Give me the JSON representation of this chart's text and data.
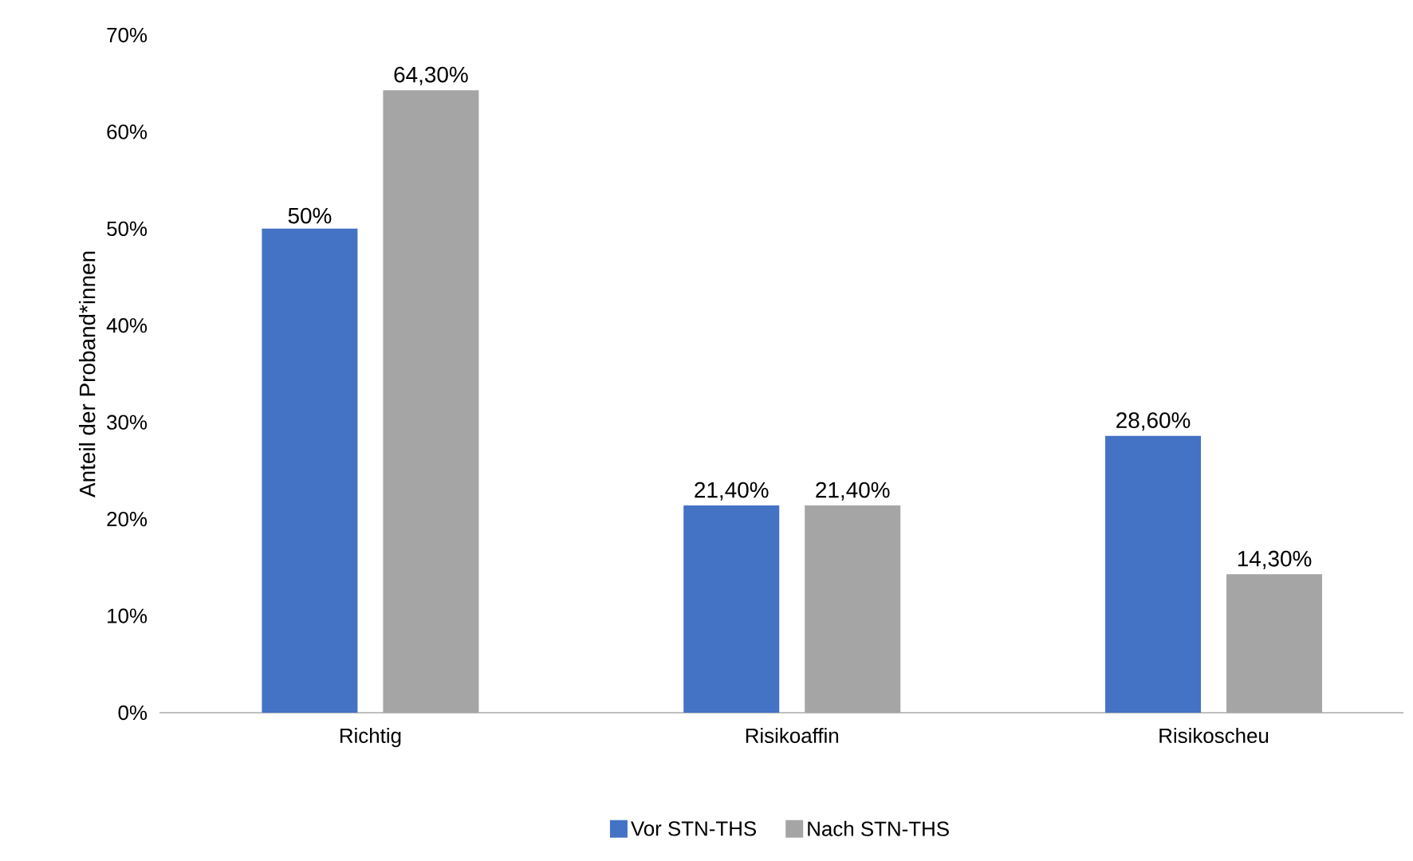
{
  "chart_data": {
    "type": "bar",
    "ylabel": "Anteil der Proband*innen",
    "categories": [
      "Richtig",
      "Risikoaffin",
      "Risikoscheu"
    ],
    "series": [
      {
        "name": "Vor STN-THS",
        "color": "#4472c4",
        "values": [
          50,
          21.4,
          28.6
        ],
        "value_labels": [
          "50%",
          "21,40%",
          "28,60%"
        ]
      },
      {
        "name": "Nach STN-THS",
        "color": "#a5a5a5",
        "values": [
          64.3,
          21.4,
          14.3
        ],
        "value_labels": [
          "64,30%",
          "21,40%",
          "14,30%"
        ]
      }
    ],
    "ylim": [
      0,
      70
    ],
    "yticks": [
      {
        "value": 0,
        "label": "0%"
      },
      {
        "value": 10,
        "label": "10%"
      },
      {
        "value": 20,
        "label": "20%"
      },
      {
        "value": 30,
        "label": "30%"
      },
      {
        "value": 40,
        "label": "40%"
      },
      {
        "value": 50,
        "label": "50%"
      },
      {
        "value": 60,
        "label": "60%"
      },
      {
        "value": 70,
        "label": "70%"
      }
    ],
    "legend": "bottom"
  }
}
